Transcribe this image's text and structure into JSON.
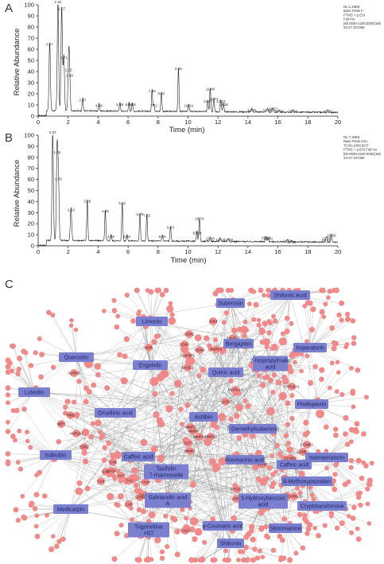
{
  "figure": {
    "panel_letters": [
      "A",
      "B",
      "C"
    ]
  },
  "chart_data": [
    {
      "type": "line",
      "panel": "A",
      "xlabel": "Time (min)",
      "ylabel": "Relative Abundance",
      "xlim": [
        0,
        20
      ],
      "ylim": [
        0,
        100
      ],
      "x_ticks": [
        0,
        2,
        4,
        6,
        8,
        10,
        12,
        14,
        16,
        18,
        20
      ],
      "y_ticks": [
        0,
        10,
        20,
        30,
        40,
        50,
        60,
        70,
        80,
        90,
        100
      ],
      "meta": [
        "NL:1.20E8",
        "Base Peak F:",
        "FTMS + p ESI",
        "Full ms",
        "[80.0000-1200.0000] MS",
        "23-27 337356"
      ],
      "baseline": 5,
      "line_color": "#222222",
      "peaks": [
        {
          "rt": 0.77,
          "label": "0.77",
          "height": 62
        },
        {
          "rt": 1.32,
          "label": "1.32",
          "height": 100
        },
        {
          "rt": 1.57,
          "label": "1.57",
          "height": 94
        },
        {
          "rt": 1.71,
          "label": "1.71",
          "height": 50
        },
        {
          "rt": 2.03,
          "label": "2.03",
          "height": 39
        },
        {
          "rt": 2.09,
          "label": "2.09",
          "height": 34
        },
        {
          "rt": 2.97,
          "label": "2.97",
          "height": 12
        },
        {
          "rt": 4.06,
          "label": "4.06",
          "height": 7
        },
        {
          "rt": 5.45,
          "label": "5.45",
          "height": 8
        },
        {
          "rt": 6.06,
          "label": "6.06",
          "height": 8
        },
        {
          "rt": 6.28,
          "label": "6.28",
          "height": 8
        },
        {
          "rt": 7.6,
          "label": "7.60",
          "height": 20
        },
        {
          "rt": 7.72,
          "label": "7.72",
          "height": 7
        },
        {
          "rt": 8.22,
          "label": "8.22",
          "height": 18
        },
        {
          "rt": 9.36,
          "label": "9.36",
          "height": 40
        },
        {
          "rt": 10.04,
          "label": "10.04",
          "height": 7
        },
        {
          "rt": 11.32,
          "label": "11.32",
          "height": 11
        },
        {
          "rt": 11.48,
          "label": "11.48",
          "height": 22
        },
        {
          "rt": 11.72,
          "label": "11.72",
          "height": 13
        },
        {
          "rt": 12.36,
          "label": "12.36",
          "height": 8
        },
        {
          "rt": 12.19,
          "label": "12.19",
          "height": 11
        },
        {
          "rt": 14.26,
          "label": "14.26",
          "height": 3
        },
        {
          "rt": 15.3,
          "label": "15.30",
          "height": 3
        },
        {
          "rt": 15.67,
          "label": "15.67",
          "height": 4
        },
        {
          "rt": 16.06,
          "label": "16.06",
          "height": 2
        },
        {
          "rt": 16.99,
          "label": "16.99",
          "height": 2
        },
        {
          "rt": 19.33,
          "label": "19.33",
          "height": 2
        }
      ]
    },
    {
      "type": "line",
      "panel": "B",
      "xlabel": "Time (min)",
      "ylabel": "Relative Abundance",
      "xlim": [
        0,
        20
      ],
      "ylim": [
        0,
        100
      ],
      "x_ticks": [
        0,
        2,
        4,
        6,
        8,
        10,
        12,
        14,
        16,
        18,
        20
      ],
      "y_ticks": [
        0,
        10,
        20,
        30,
        40,
        50,
        60,
        70,
        80,
        90,
        100
      ],
      "meta": [
        "NL:7.20E8",
        "Base Peak m/z=",
        "70.00-1000.00 F:",
        "FTMS + p ESI Full ms",
        "[80.0000-1200.0000] MS",
        "23-27 337356"
      ],
      "baseline": 5,
      "line_color": "#222222",
      "peaks": [
        {
          "rt": 0.97,
          "label": "0.97",
          "height": 100
        },
        {
          "rt": 1.26,
          "label": "1.26",
          "height": 82
        },
        {
          "rt": 1.35,
          "label": "1.35",
          "height": 58
        },
        {
          "rt": 2.19,
          "label": "2.19",
          "height": 30
        },
        {
          "rt": 3.28,
          "label": "3.28",
          "height": 38
        },
        {
          "rt": 4.48,
          "label": "4.48",
          "height": 29
        },
        {
          "rt": 4.86,
          "label": "4.86",
          "height": 6
        },
        {
          "rt": 5.61,
          "label": "5.61",
          "height": 36
        },
        {
          "rt": 5.92,
          "label": "5.92",
          "height": 6
        },
        {
          "rt": 6.79,
          "label": "6.79",
          "height": 26
        },
        {
          "rt": 7.25,
          "label": "7.25",
          "height": 25
        },
        {
          "rt": 8.28,
          "label": "8.28",
          "height": 6
        },
        {
          "rt": 8.83,
          "label": "8.83",
          "height": 14
        },
        {
          "rt": 10.59,
          "label": "10.59",
          "height": 9
        },
        {
          "rt": 10.76,
          "label": "10.76",
          "height": 22
        },
        {
          "rt": 11.48,
          "label": "11.48",
          "height": 4
        },
        {
          "rt": 12.14,
          "label": "12.14",
          "height": 3
        },
        {
          "rt": 12.69,
          "label": "12.69",
          "height": 3
        },
        {
          "rt": 15.2,
          "label": "15.20",
          "height": 5
        },
        {
          "rt": 15.34,
          "label": "15.34",
          "height": 4
        },
        {
          "rt": 16.64,
          "label": "16.64",
          "height": 2
        },
        {
          "rt": 16.9,
          "label": "16.90",
          "height": 1
        },
        {
          "rt": 19.21,
          "label": "19.21",
          "height": 2
        },
        {
          "rt": 19.25,
          "label": "19.25",
          "height": 4
        },
        {
          "rt": 19.56,
          "label": "19.56",
          "height": 7
        }
      ]
    }
  ],
  "network": {
    "panel": "C",
    "colors": {
      "hub": "#7b7fd0",
      "hub_text": "#1e2560",
      "target": "#f08a8a",
      "edge": "#8d8d8d"
    },
    "hubs": [
      "Limonin",
      "Suberosin",
      "Shikimic Acid",
      "Quercetin",
      "Engelelin",
      "Bergapten",
      "Imperatorin",
      "2-Isopropylmalic acid",
      "Quinic acid",
      "Luteolin",
      "Orsellinic acid",
      "Astilbin",
      "Phelloplerin",
      "7-Demethylsuberosin",
      "Indirubin",
      "Caffeic acid",
      "Rosmarinic acid",
      "Caffeic acid",
      "Isoimperatorin",
      "Taxifolin 7-rhamnoside",
      "8-Methoxypsoralen",
      "Medicarpin",
      "Salvianolic acid A",
      "3-Hydroxybenzoic acid",
      "Cryptotanshinone",
      "Trigonelline HCl",
      "p-Coumaric acid",
      "Skimmianine",
      "Shikonin"
    ],
    "targets": [
      "JAK3",
      "PIK3CA",
      "FLT3",
      "CDK2",
      "CDK1",
      "CDK6",
      "PARP1",
      "KDR",
      "CDK5R1",
      "BACE1",
      "AURKB",
      "MAPK14",
      "CYP19A1",
      "PIM1",
      "ALOX5",
      "MET",
      "AKR1B1",
      "MMP3",
      "MMP9",
      "MMP13",
      "MMP12",
      "FUT7",
      "MMP2",
      "CCNB1",
      "CCNE1",
      "CCNB2",
      "ESR2",
      "ACHE",
      "EGFR",
      "CA6",
      "CA5A",
      "CA1",
      "CA14",
      "CA7",
      "CA3",
      "CA4",
      "CA5B",
      "CA12",
      "CA9",
      "ADORA2A",
      "PTGS1",
      "APP",
      "ADORA1",
      "CA13"
    ]
  }
}
